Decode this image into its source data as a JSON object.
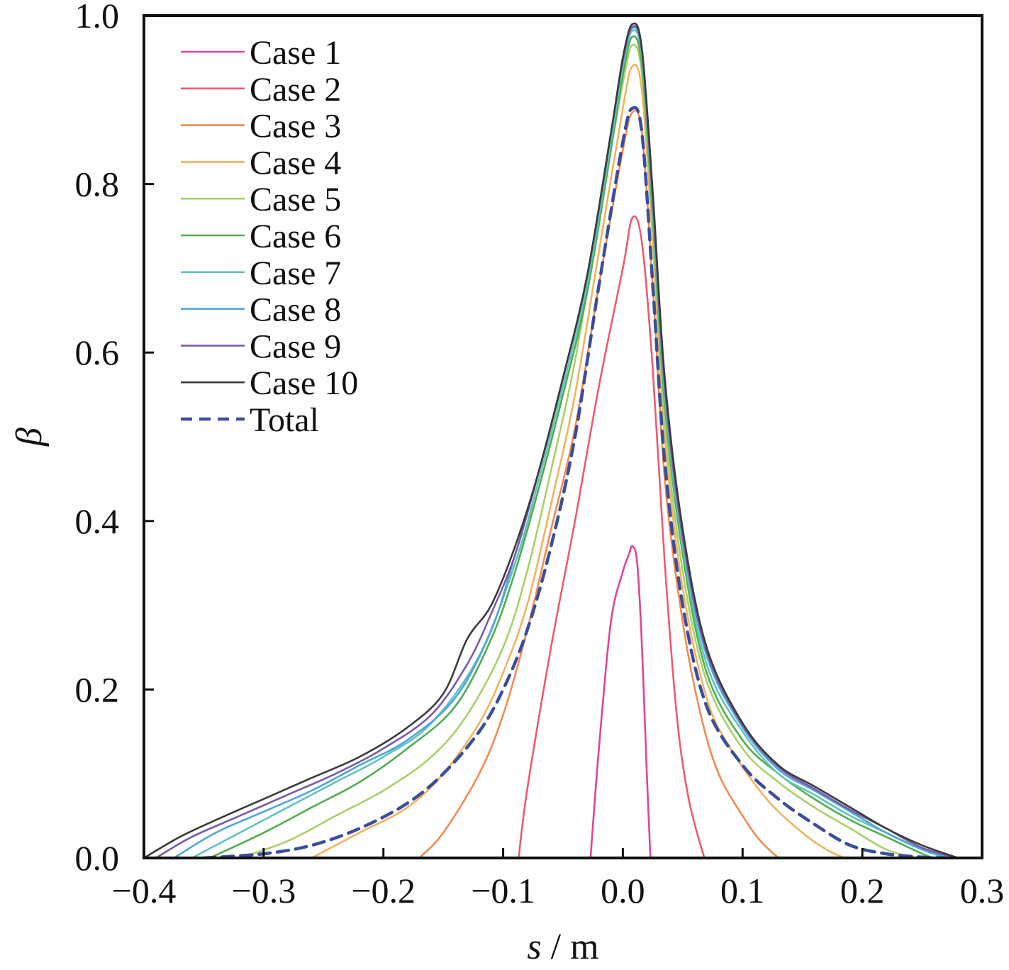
{
  "chart_data": {
    "type": "line",
    "xlabel": "s / m",
    "ylabel": "β",
    "xlim": [
      -0.4,
      0.3
    ],
    "ylim": [
      0.0,
      1.0
    ],
    "x_ticks": [
      -0.4,
      -0.3,
      -0.2,
      -0.1,
      0.0,
      0.1,
      0.2,
      0.3
    ],
    "x_tick_labels": [
      "−0.4",
      "−0.3",
      "−0.2",
      "−0.1",
      "0.0",
      "0.1",
      "0.2",
      "0.3"
    ],
    "y_ticks": [
      0.0,
      0.2,
      0.4,
      0.6,
      0.8,
      1.0
    ],
    "y_tick_labels": [
      "0.0",
      "0.2",
      "0.4",
      "0.6",
      "0.8",
      "1.0"
    ],
    "grid": false,
    "legend_position": "top-left",
    "series": [
      {
        "name": "Case 1",
        "color": "#e0449a",
        "style": "solid",
        "x": [
          -0.027,
          -0.02,
          -0.01,
          0.0,
          0.005,
          0.008,
          0.012,
          0.016,
          0.02,
          0.023
        ],
        "y": [
          0.0,
          0.13,
          0.28,
          0.34,
          0.36,
          0.37,
          0.35,
          0.25,
          0.1,
          0.0
        ]
      },
      {
        "name": "Case 2",
        "color": "#ee5a70",
        "style": "solid",
        "x": [
          -0.087,
          -0.08,
          -0.06,
          -0.04,
          -0.02,
          0.0,
          0.008,
          0.016,
          0.025,
          0.035,
          0.045,
          0.055,
          0.068
        ],
        "y": [
          0.0,
          0.08,
          0.25,
          0.4,
          0.56,
          0.7,
          0.76,
          0.73,
          0.58,
          0.35,
          0.17,
          0.07,
          0.0
        ]
      },
      {
        "name": "Case 3",
        "color": "#f28b4e",
        "style": "solid",
        "x": [
          -0.17,
          -0.15,
          -0.12,
          -0.1,
          -0.08,
          -0.06,
          -0.04,
          -0.02,
          0.0,
          0.008,
          0.016,
          0.025,
          0.035,
          0.05,
          0.065,
          0.08,
          0.1,
          0.115,
          0.13
        ],
        "y": [
          0.0,
          0.03,
          0.1,
          0.17,
          0.27,
          0.39,
          0.51,
          0.68,
          0.84,
          0.885,
          0.86,
          0.68,
          0.45,
          0.28,
          0.17,
          0.1,
          0.05,
          0.02,
          0.0
        ]
      },
      {
        "name": "Case 4",
        "color": "#f3b25e",
        "style": "solid",
        "x": [
          -0.26,
          -0.22,
          -0.18,
          -0.15,
          -0.12,
          -0.1,
          -0.08,
          -0.06,
          -0.04,
          -0.02,
          0.0,
          0.008,
          0.016,
          0.025,
          0.035,
          0.05,
          0.07,
          0.09,
          0.12,
          0.15,
          0.17,
          0.185
        ],
        "y": [
          0.0,
          0.03,
          0.06,
          0.1,
          0.16,
          0.22,
          0.3,
          0.42,
          0.55,
          0.72,
          0.89,
          0.94,
          0.91,
          0.73,
          0.5,
          0.32,
          0.19,
          0.13,
          0.07,
          0.03,
          0.01,
          0.0
        ]
      },
      {
        "name": "Case 5",
        "color": "#a9d067",
        "style": "solid",
        "x": [
          -0.32,
          -0.28,
          -0.24,
          -0.2,
          -0.16,
          -0.13,
          -0.1,
          -0.08,
          -0.06,
          -0.04,
          -0.02,
          0.0,
          0.008,
          0.016,
          0.025,
          0.035,
          0.05,
          0.07,
          0.1,
          0.13,
          0.16,
          0.19,
          0.22,
          0.245
        ],
        "y": [
          0.0,
          0.02,
          0.05,
          0.08,
          0.12,
          0.17,
          0.25,
          0.34,
          0.46,
          0.59,
          0.76,
          0.92,
          0.965,
          0.93,
          0.75,
          0.52,
          0.34,
          0.21,
          0.13,
          0.09,
          0.06,
          0.035,
          0.01,
          0.0
        ]
      },
      {
        "name": "Case 6",
        "color": "#4eae4e",
        "style": "solid",
        "x": [
          -0.345,
          -0.3,
          -0.26,
          -0.22,
          -0.18,
          -0.14,
          -0.11,
          -0.09,
          -0.07,
          -0.05,
          -0.03,
          -0.01,
          0.0,
          0.008,
          0.016,
          0.025,
          0.035,
          0.05,
          0.07,
          0.1,
          0.13,
          0.16,
          0.19,
          0.22,
          0.25,
          0.26
        ],
        "y": [
          0.0,
          0.03,
          0.06,
          0.09,
          0.13,
          0.18,
          0.26,
          0.34,
          0.44,
          0.55,
          0.67,
          0.84,
          0.93,
          0.975,
          0.94,
          0.76,
          0.54,
          0.36,
          0.22,
          0.14,
          0.1,
          0.07,
          0.045,
          0.025,
          0.005,
          0.0
        ]
      },
      {
        "name": "Case 7",
        "color": "#5fc2c0",
        "style": "solid",
        "x": [
          -0.36,
          -0.32,
          -0.28,
          -0.24,
          -0.2,
          -0.16,
          -0.12,
          -0.09,
          -0.07,
          -0.05,
          -0.03,
          -0.01,
          0.0,
          0.008,
          0.016,
          0.025,
          0.035,
          0.05,
          0.07,
          0.1,
          0.13,
          0.16,
          0.19,
          0.22,
          0.25,
          0.27
        ],
        "y": [
          0.0,
          0.03,
          0.06,
          0.09,
          0.12,
          0.16,
          0.24,
          0.35,
          0.45,
          0.56,
          0.68,
          0.85,
          0.94,
          0.982,
          0.95,
          0.77,
          0.55,
          0.37,
          0.23,
          0.15,
          0.1,
          0.075,
          0.05,
          0.03,
          0.01,
          0.0
        ]
      },
      {
        "name": "Case 8",
        "color": "#4fa6d6",
        "style": "solid",
        "x": [
          -0.375,
          -0.34,
          -0.3,
          -0.26,
          -0.22,
          -0.18,
          -0.14,
          -0.11,
          -0.09,
          -0.07,
          -0.05,
          -0.03,
          -0.01,
          0.0,
          0.008,
          0.016,
          0.025,
          0.035,
          0.05,
          0.07,
          0.1,
          0.13,
          0.16,
          0.19,
          0.22,
          0.25,
          0.275
        ],
        "y": [
          0.0,
          0.03,
          0.055,
          0.08,
          0.11,
          0.14,
          0.19,
          0.27,
          0.36,
          0.46,
          0.57,
          0.69,
          0.86,
          0.945,
          0.985,
          0.955,
          0.78,
          0.56,
          0.38,
          0.24,
          0.155,
          0.105,
          0.08,
          0.055,
          0.03,
          0.01,
          0.0
        ]
      },
      {
        "name": "Case 9",
        "color": "#7a5aa8",
        "style": "solid",
        "x": [
          -0.39,
          -0.36,
          -0.32,
          -0.28,
          -0.24,
          -0.2,
          -0.16,
          -0.13,
          -0.11,
          -0.09,
          -0.07,
          -0.05,
          -0.03,
          -0.01,
          0.0,
          0.008,
          0.016,
          0.025,
          0.035,
          0.05,
          0.07,
          0.1,
          0.13,
          0.16,
          0.19,
          0.22,
          0.25,
          0.28
        ],
        "y": [
          0.0,
          0.025,
          0.05,
          0.075,
          0.1,
          0.13,
          0.17,
          0.23,
          0.29,
          0.36,
          0.46,
          0.57,
          0.69,
          0.86,
          0.948,
          0.987,
          0.957,
          0.78,
          0.56,
          0.38,
          0.245,
          0.158,
          0.108,
          0.082,
          0.057,
          0.035,
          0.012,
          0.0
        ]
      },
      {
        "name": "Case 10",
        "color": "#3b3b3b",
        "style": "solid",
        "x": [
          -0.4,
          -0.37,
          -0.34,
          -0.3,
          -0.26,
          -0.22,
          -0.18,
          -0.15,
          -0.13,
          -0.11,
          -0.09,
          -0.07,
          -0.05,
          -0.03,
          -0.01,
          0.0,
          0.008,
          0.016,
          0.025,
          0.035,
          0.05,
          0.07,
          0.1,
          0.13,
          0.16,
          0.19,
          0.22,
          0.25,
          0.28
        ],
        "y": [
          0.0,
          0.025,
          0.045,
          0.07,
          0.095,
          0.12,
          0.155,
          0.195,
          0.26,
          0.3,
          0.37,
          0.46,
          0.57,
          0.69,
          0.86,
          0.95,
          0.99,
          0.96,
          0.79,
          0.57,
          0.39,
          0.25,
          0.16,
          0.11,
          0.085,
          0.06,
          0.035,
          0.015,
          0.0
        ]
      },
      {
        "name": "Total",
        "color": "#3a4e9c",
        "style": "dashed",
        "x": [
          -0.35,
          -0.3,
          -0.26,
          -0.22,
          -0.18,
          -0.15,
          -0.12,
          -0.1,
          -0.08,
          -0.06,
          -0.04,
          -0.02,
          0.0,
          0.008,
          0.016,
          0.025,
          0.035,
          0.05,
          0.07,
          0.1,
          0.13,
          0.16,
          0.19,
          0.22,
          0.25,
          0.27
        ],
        "y": [
          0.0,
          0.005,
          0.015,
          0.035,
          0.065,
          0.1,
          0.15,
          0.2,
          0.27,
          0.37,
          0.5,
          0.68,
          0.85,
          0.89,
          0.86,
          0.68,
          0.47,
          0.3,
          0.18,
          0.11,
          0.07,
          0.04,
          0.015,
          0.005,
          0.001,
          0.0
        ]
      }
    ]
  }
}
